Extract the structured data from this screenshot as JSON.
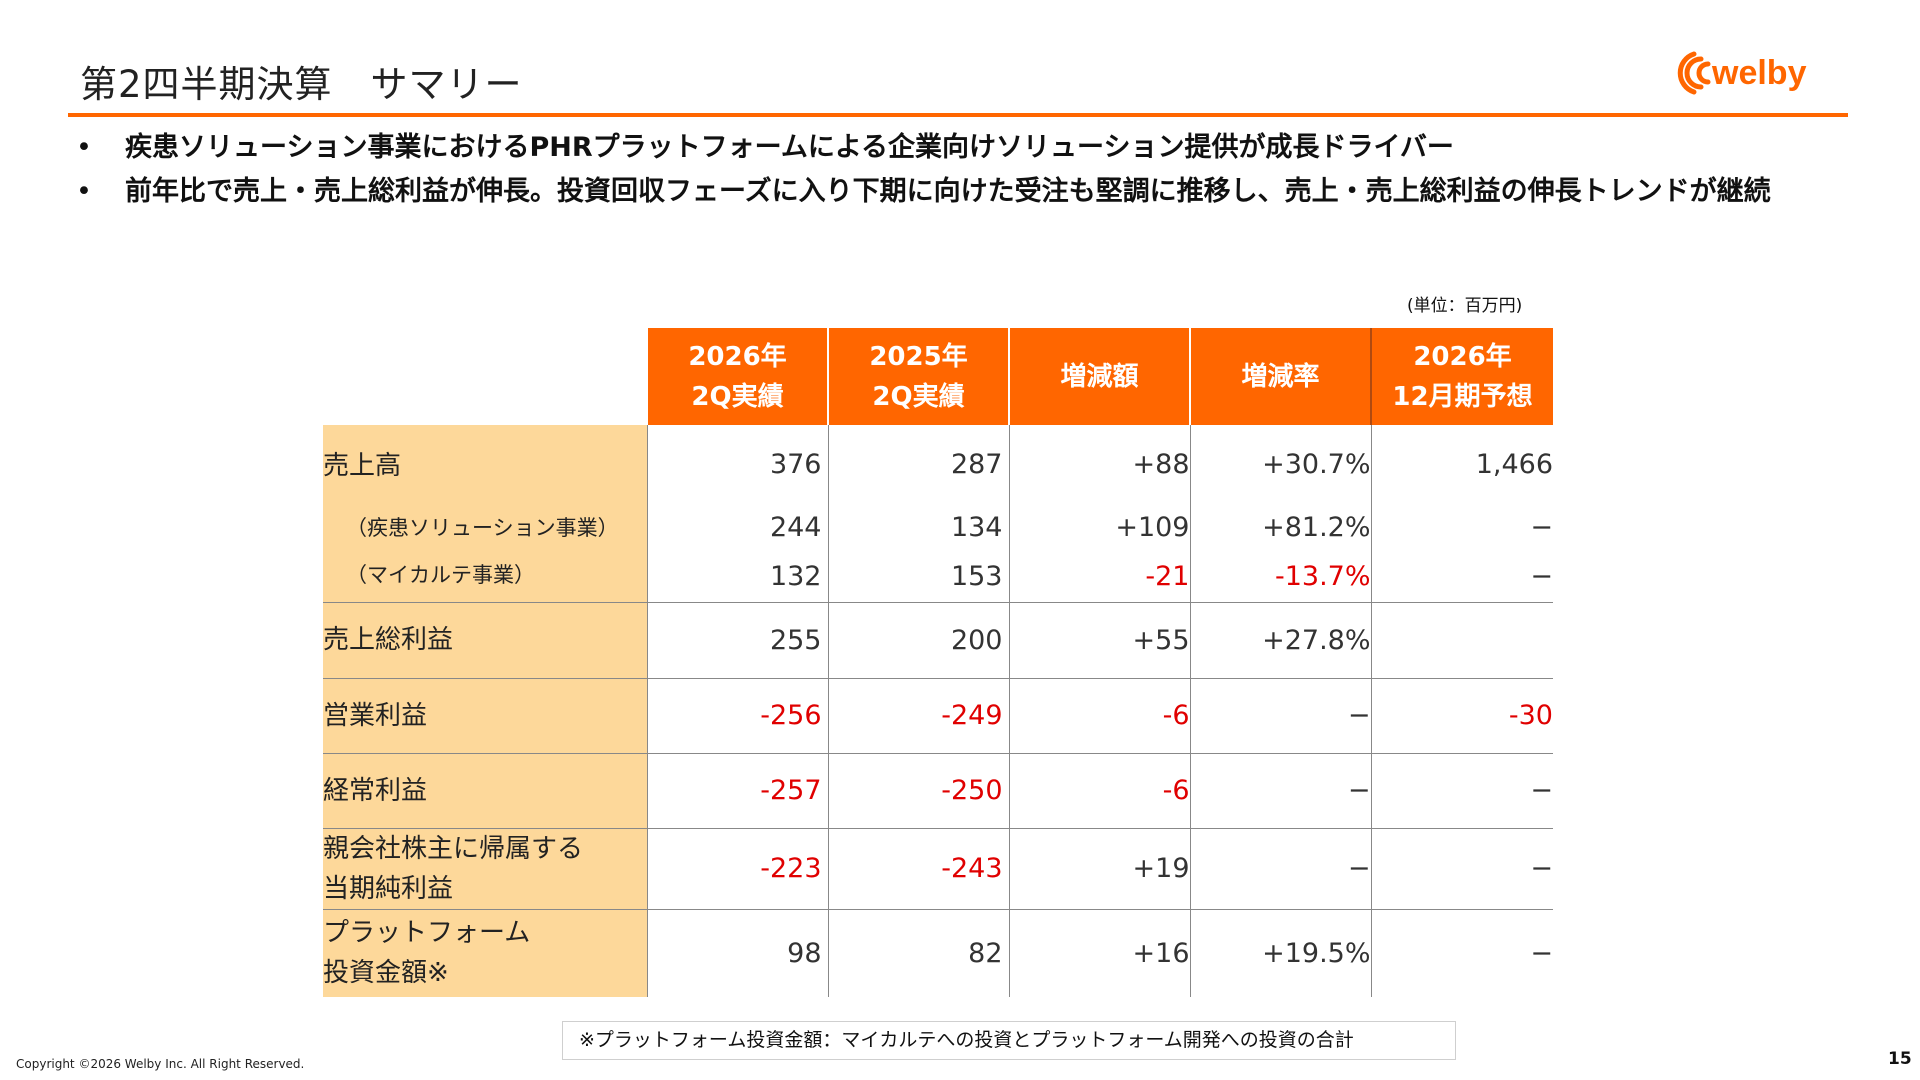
{
  "header": {
    "title": "第2四半期決算　サマリー",
    "logo_text": "welby",
    "brand_color": "#ff6600"
  },
  "bullets": [
    "疾患ソリューション事業におけるPHRプラットフォームによる企業向けソリューション提供が成長ドライバー",
    "前年比で売上・売上総利益が伸長。投資回収フェーズに入り下期に向けた受注も堅調に推移し、売上・売上総利益の伸長トレンドが継続"
  ],
  "unit_note": "(単位：百万円)",
  "table": {
    "columns": [
      {
        "line1": "2026年",
        "line2": "2Q実績"
      },
      {
        "line1": "2025年",
        "line2": "2Q実績"
      },
      {
        "line1": "増減額",
        "line2": ""
      },
      {
        "line1": "増減率",
        "line2": ""
      },
      {
        "line1": "2026年",
        "line2": "12月期予想"
      }
    ],
    "rows": [
      {
        "label": [
          "売上高"
        ],
        "values": [
          "376",
          "287",
          "+88",
          "+30.7%",
          "1,466"
        ]
      },
      {
        "label": [
          "（疾患ソリューション事業）"
        ],
        "values": [
          "244",
          "134",
          "+109",
          "+81.2%",
          "−"
        ]
      },
      {
        "label": [
          "（マイカルテ事業）"
        ],
        "values": [
          "132",
          "153",
          "-21",
          "-13.7%",
          "−"
        ]
      },
      {
        "label": [
          "売上総利益"
        ],
        "values": [
          "255",
          "200",
          "+55",
          "+27.8%",
          ""
        ]
      },
      {
        "label": [
          "営業利益"
        ],
        "values": [
          "-256",
          "-249",
          "-6",
          "−",
          "-30"
        ]
      },
      {
        "label": [
          "経常利益"
        ],
        "values": [
          "-257",
          "-250",
          "-6",
          "−",
          "−"
        ]
      },
      {
        "label": [
          "親会社株主に帰属する",
          "当期純利益"
        ],
        "values": [
          "-223",
          "-243",
          "+19",
          "−",
          "−"
        ]
      },
      {
        "label": [
          "プラットフォーム",
          "投資金額※"
        ],
        "values": [
          "98",
          "82",
          "+16",
          "+19.5%",
          "−"
        ]
      }
    ],
    "colors": {
      "header_bg": "#ff6600",
      "label_bg": "#fdd89a",
      "negative": "#e00000"
    }
  },
  "footnote": "※プラットフォーム投資金額：マイカルテへの投資とプラットフォーム開発への投資の合計",
  "footer": {
    "copyright": "Copyright ©2026 Welby Inc. All Right Reserved.",
    "page_number": "15"
  }
}
